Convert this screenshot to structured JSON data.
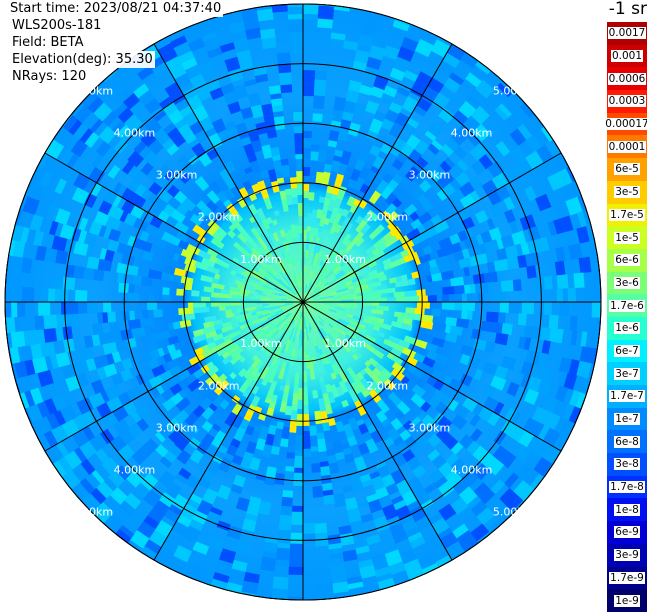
{
  "header": {
    "start_time": "Start time: 2023/08/21 04:37:40",
    "device": "WLS200s-181",
    "field": "Field: BETA",
    "elevation": "Elevation(deg): 35.30",
    "nrays": "NRays: 120",
    "units": "-1 sr"
  },
  "colorbar": [
    {
      "label": "0.0017",
      "color": "#b00000"
    },
    {
      "label": "0.001",
      "color": "#cc0000"
    },
    {
      "label": "0.0006",
      "color": "#e80000"
    },
    {
      "label": "0.0003",
      "color": "#ff1a00"
    },
    {
      "label": "0.00017",
      "color": "#ff4a00"
    },
    {
      "label": "0.0001",
      "color": "#ff7800"
    },
    {
      "label": "6e-5",
      "color": "#ffa200"
    },
    {
      "label": "3e-5",
      "color": "#ffcc00"
    },
    {
      "label": "1.7e-5",
      "color": "#f0f000"
    },
    {
      "label": "1e-5",
      "color": "#ccff22"
    },
    {
      "label": "6e-6",
      "color": "#a6ff48"
    },
    {
      "label": "3e-6",
      "color": "#7cff78"
    },
    {
      "label": "1.7e-6",
      "color": "#55ffa2"
    },
    {
      "label": "1e-6",
      "color": "#28ffd0"
    },
    {
      "label": "6e-7",
      "color": "#00f0ff"
    },
    {
      "label": "3e-7",
      "color": "#00d0ff"
    },
    {
      "label": "1.7e-7",
      "color": "#00b0ff"
    },
    {
      "label": "1e-7",
      "color": "#008cff"
    },
    {
      "label": "6e-8",
      "color": "#0070ff"
    },
    {
      "label": "3e-8",
      "color": "#0050ff"
    },
    {
      "label": "1.7e-8",
      "color": "#0030ff"
    },
    {
      "label": "1e-8",
      "color": "#0010f0"
    },
    {
      "label": "6e-9",
      "color": "#0000d6"
    },
    {
      "label": "3e-9",
      "color": "#0000b4"
    },
    {
      "label": "1.7e-9",
      "color": "#00008c"
    },
    {
      "label": "1e-9",
      "color": "#00006a"
    }
  ],
  "range_labels": [
    "1.00km",
    "2.00km",
    "3.00km",
    "4.00km",
    "5.00km"
  ],
  "range_km": [
    1,
    2,
    3,
    4,
    5
  ]
}
